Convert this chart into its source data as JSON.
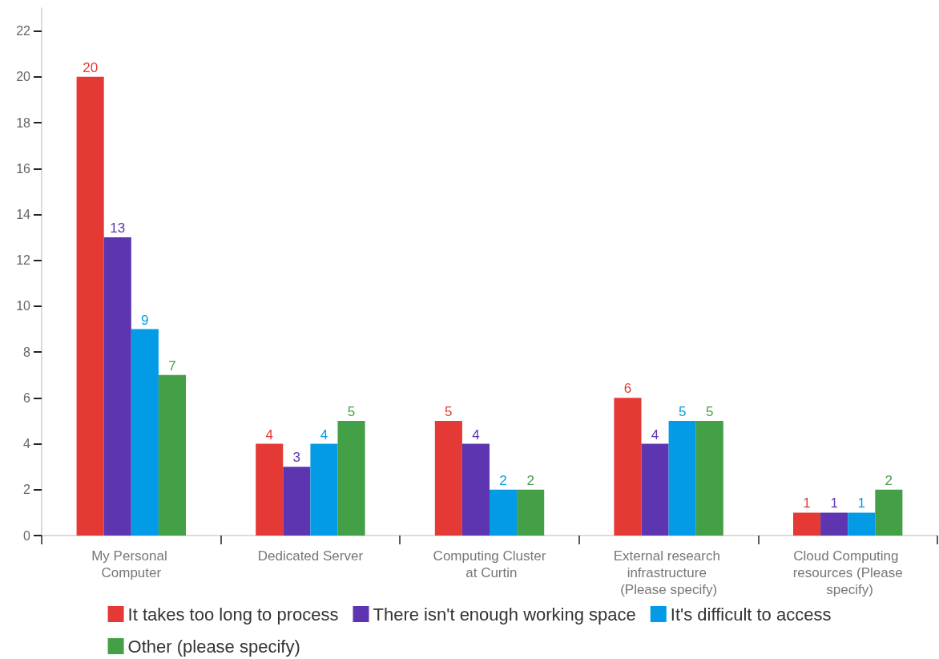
{
  "chart_data": {
    "type": "bar",
    "categories": [
      "My Personal Computer",
      "Dedicated Server",
      "Computing Cluster at Curtin",
      "External research infrastructure (Please specify)",
      "Cloud Computing resources (Please specify)"
    ],
    "series": [
      {
        "name": "It takes too long to process",
        "color": "#e53935",
        "values": [
          20,
          4,
          5,
          6,
          1
        ]
      },
      {
        "name": "There isn't enough working space",
        "color": "#5e35b1",
        "values": [
          13,
          3,
          4,
          4,
          1
        ]
      },
      {
        "name": "It's difficult to access",
        "color": "#039be5",
        "values": [
          9,
          4,
          2,
          5,
          1
        ]
      },
      {
        "name": "Other (please specify)",
        "color": "#43a047",
        "values": [
          7,
          5,
          2,
          5,
          2
        ]
      }
    ],
    "ylim": [
      0,
      23
    ],
    "yticks": [
      0,
      2,
      4,
      6,
      8,
      10,
      12,
      14,
      16,
      18,
      20,
      22
    ],
    "data_labels": true,
    "legend": "bottom"
  }
}
